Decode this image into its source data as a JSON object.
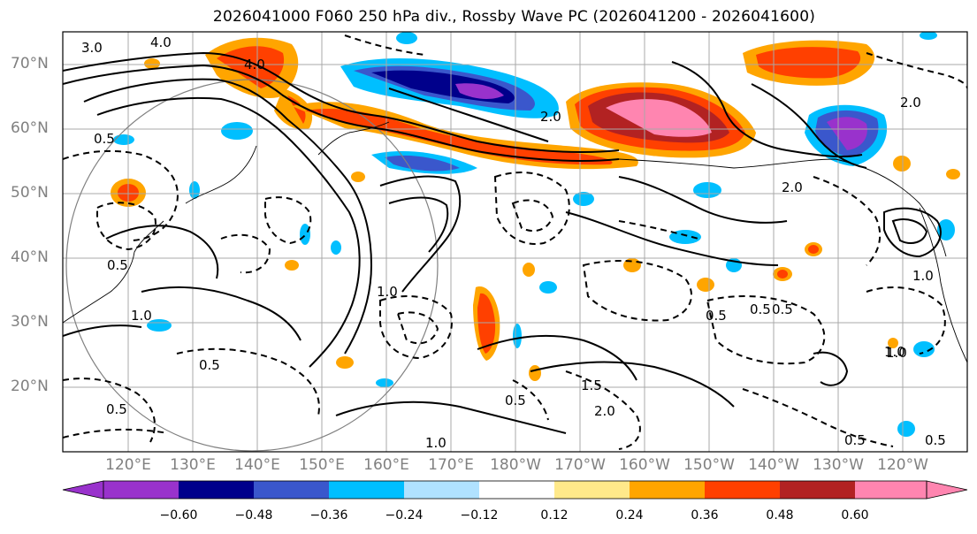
{
  "title": "2026041000 F060 250 hPa div., Rossby Wave PC (2026041200 - 2026041600)",
  "lat_labels": [
    "70°N",
    "60°N",
    "50°N",
    "40°N",
    "30°N",
    "20°N"
  ],
  "lon_labels": [
    "120°E",
    "130°E",
    "140°E",
    "150°E",
    "160°E",
    "170°E",
    "180°W",
    "170°W",
    "160°W",
    "150°W",
    "140°W",
    "130°W",
    "120°W"
  ],
  "contour_labels": [
    "3.0",
    "4.0",
    "4.0",
    "2.0",
    "2.0",
    "2.0",
    "1.0",
    "1.0",
    "0.5",
    "0.5",
    "0.5",
    "1.0",
    "1.5",
    "2.0",
    "1.0",
    "0.5",
    "0.5",
    "1.0",
    "0.5",
    "1.0",
    "0.5",
    "0.5",
    "0.5",
    "0.5"
  ],
  "colorbar": {
    "ticks": [
      "−0.60",
      "−0.48",
      "−0.36",
      "−0.24",
      "−0.12",
      "0.12",
      "0.24",
      "0.36",
      "0.48",
      "0.60"
    ],
    "colors": [
      "#9932CC",
      "#00008B",
      "#3A57CC",
      "#00BFFF",
      "#B0E2FF",
      "#FFFFFF",
      "#FFE98A",
      "#FFA500",
      "#FF4000",
      "#B22222",
      "#FF85B0"
    ]
  }
}
